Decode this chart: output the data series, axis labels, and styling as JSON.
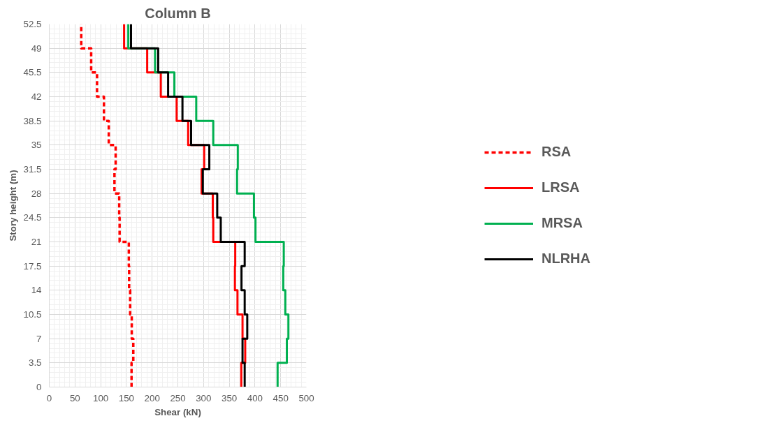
{
  "chart_data": {
    "type": "line",
    "title": "Column B",
    "xlabel": "Shear (kN)",
    "ylabel": "Story height (m)",
    "xlim": [
      0,
      500
    ],
    "ylim": [
      0,
      52.5
    ],
    "xticks": [
      0,
      50,
      100,
      150,
      200,
      250,
      300,
      350,
      400,
      450,
      500
    ],
    "yticks": [
      0,
      3.5,
      7,
      10.5,
      14,
      17.5,
      21,
      24.5,
      28,
      31.5,
      35,
      38.5,
      42,
      45.5,
      49,
      52.5
    ],
    "grid": true,
    "legend": "right",
    "marker": "none",
    "series": [
      {
        "name": "RSA",
        "color": "#ff0000",
        "line_style": "dashed",
        "x": [
          160,
          160,
          163.4,
          163.4,
          160.4,
          160.4,
          157.3,
          157.3,
          155.3,
          155.3,
          154.7,
          154.7,
          136.8,
          136.8,
          136,
          136,
          126.8,
          126.8,
          129.1,
          129.1,
          115.7,
          115.7,
          106.3,
          106.3,
          92.9,
          92.9,
          81.5,
          81.5,
          62.2,
          62.2
        ],
        "values": [
          0,
          3.5,
          3.5,
          7,
          7,
          10.5,
          10.5,
          14,
          14,
          17.5,
          17.5,
          21,
          21,
          24.5,
          24.5,
          28,
          28,
          31.5,
          31.5,
          35,
          35,
          38.5,
          38.5,
          42,
          42,
          45.5,
          45.5,
          49,
          49,
          52.5
        ]
      },
      {
        "name": "LRSA",
        "color": "#ff0000",
        "line_style": "solid",
        "x": [
          373.4,
          373.4,
          381,
          381,
          375.8,
          375.8,
          366,
          366,
          361,
          361,
          361.6,
          361.6,
          318.9,
          318.9,
          317.9,
          317.9,
          296.2,
          296.2,
          301.2,
          301.2,
          270.1,
          270.1,
          247.7,
          247.7,
          216.9,
          216.9,
          190.4,
          190.4,
          145.5,
          145.5
        ],
        "values": [
          0,
          3.5,
          3.5,
          7,
          7,
          10.5,
          10.5,
          14,
          14,
          17.5,
          17.5,
          21,
          21,
          24.5,
          24.5,
          28,
          28,
          31.5,
          31.5,
          35,
          35,
          38.5,
          38.5,
          42,
          42,
          45.5,
          45.5,
          49,
          49,
          52.5
        ]
      },
      {
        "name": "MRSA",
        "color": "#00b050",
        "line_style": "solid",
        "x": [
          444,
          444,
          462,
          462,
          465,
          465,
          459,
          459,
          455,
          455,
          456,
          456,
          401,
          401,
          398,
          398,
          365.2,
          365.2,
          366.6,
          366.6,
          318.9,
          318.9,
          285.8,
          285.8,
          243.3,
          243.3,
          205.7,
          205.7,
          153.7,
          153.7
        ],
        "values": [
          0,
          3.5,
          3.5,
          7,
          7,
          10.5,
          10.5,
          14,
          14,
          17.5,
          17.5,
          21,
          21,
          24.5,
          24.5,
          28,
          28,
          31.5,
          31.5,
          35,
          35,
          38.5,
          38.5,
          42,
          42,
          45.5,
          45.5,
          49,
          49,
          52.5
        ]
      },
      {
        "name": "NLRHA",
        "color": "#000000",
        "line_style": "solid",
        "x": [
          380,
          380,
          375.8,
          375.8,
          385,
          385,
          380,
          380,
          373.8,
          373.8,
          380,
          380,
          333.5,
          333.5,
          326.6,
          326.6,
          298.6,
          298.6,
          311.2,
          311.2,
          275.8,
          275.8,
          259,
          259,
          231.1,
          231.1,
          211.8,
          211.8,
          159,
          159
        ],
        "values": [
          0,
          3.5,
          3.5,
          7,
          7,
          10.5,
          10.5,
          14,
          14,
          17.5,
          17.5,
          21,
          21,
          24.5,
          24.5,
          28,
          28,
          31.5,
          31.5,
          35,
          35,
          38.5,
          38.5,
          42,
          42,
          45.5,
          45.5,
          49,
          49,
          52.5
        ]
      }
    ]
  }
}
